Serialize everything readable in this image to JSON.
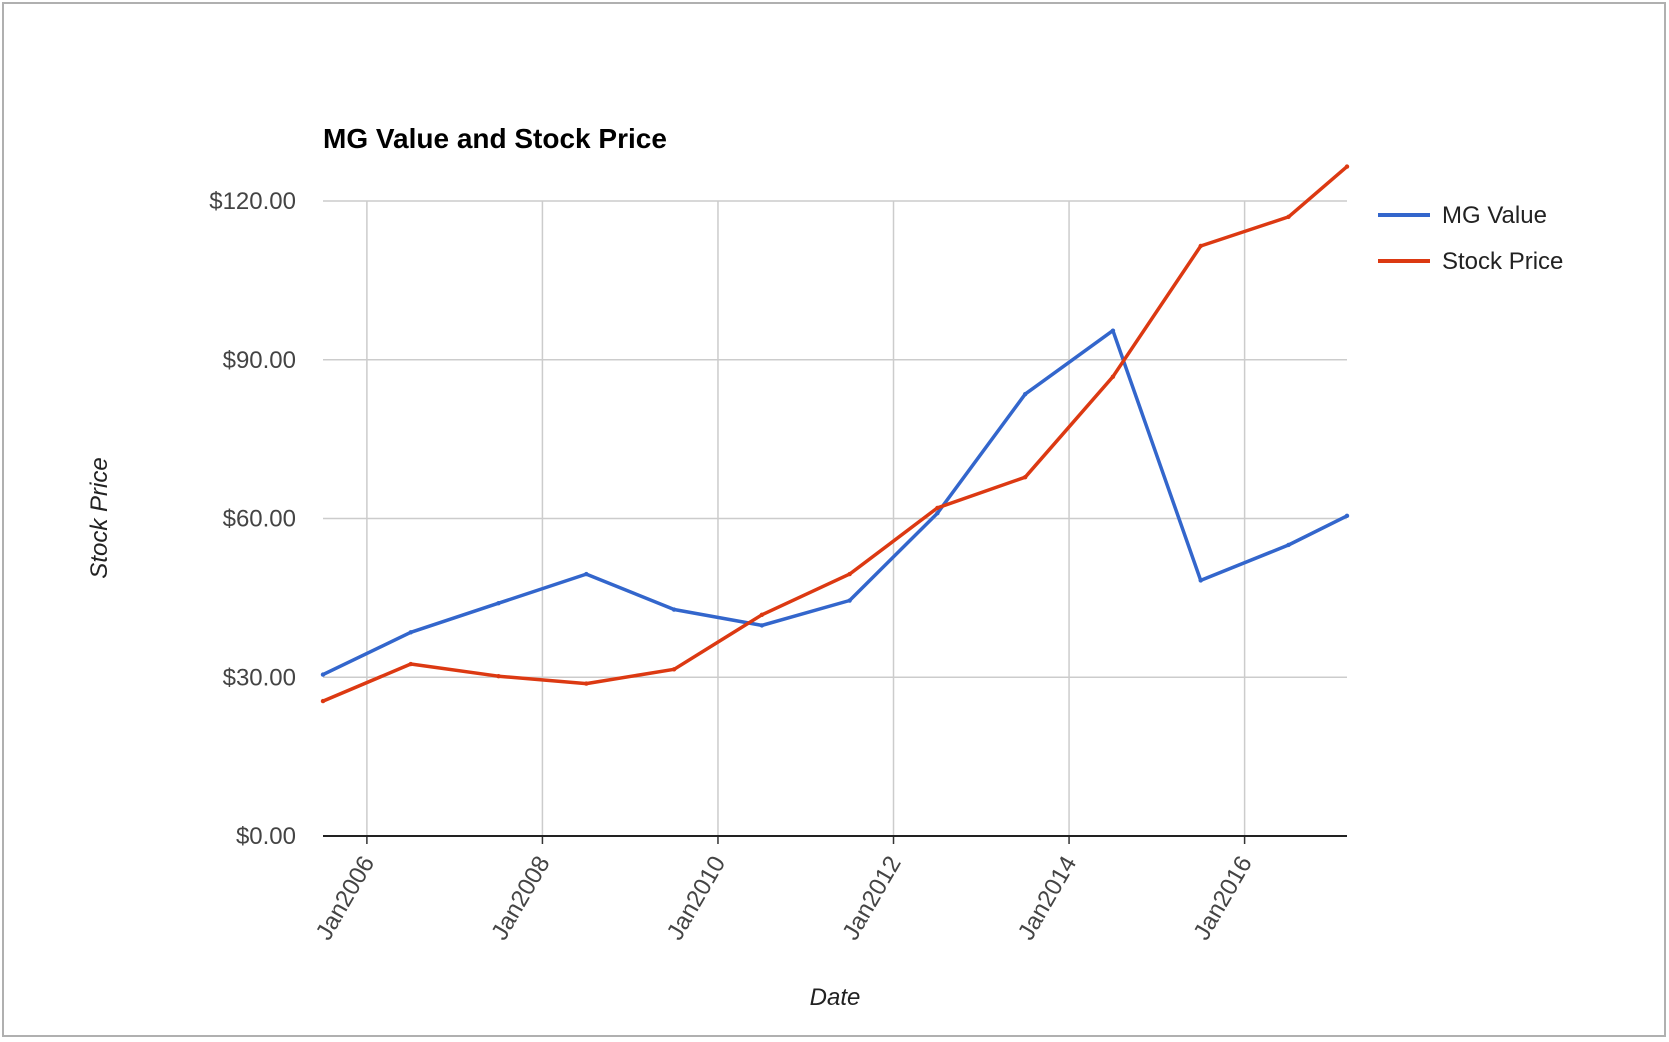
{
  "chart_data": {
    "type": "line",
    "title": "MG Value and Stock Price",
    "xlabel": "Date",
    "ylabel": "Stock Price",
    "x": [
      "2005-07",
      "2006-07",
      "2007-07",
      "2008-07",
      "2009-07",
      "2010-07",
      "2011-07",
      "2012-07",
      "2013-07",
      "2014-07",
      "2015-07",
      "2016-07",
      "2017-03"
    ],
    "x_ticks": [
      {
        "date": "2006-01",
        "label": "Jan2006"
      },
      {
        "date": "2008-01",
        "label": "Jan2008"
      },
      {
        "date": "2010-01",
        "label": "Jan2010"
      },
      {
        "date": "2012-01",
        "label": "Jan2012"
      },
      {
        "date": "2014-01",
        "label": "Jan2014"
      },
      {
        "date": "2016-01",
        "label": "Jan2016"
      }
    ],
    "y_ticks": [
      {
        "value": 0,
        "label": "$0.00"
      },
      {
        "value": 30,
        "label": "$30.00"
      },
      {
        "value": 60,
        "label": "$60.00"
      },
      {
        "value": 90,
        "label": "$90.00"
      },
      {
        "value": 120,
        "label": "$120.00"
      }
    ],
    "ylim": [
      0,
      120
    ],
    "xlim": [
      "2005-07",
      "2017-03"
    ],
    "grid": true,
    "legend_position": "right",
    "series": [
      {
        "name": "MG Value",
        "color": "#3366cc",
        "values": [
          30.5,
          38.5,
          44.0,
          49.5,
          42.8,
          39.8,
          44.5,
          61.0,
          83.5,
          95.5,
          48.3,
          55.0,
          60.5
        ]
      },
      {
        "name": "Stock Price",
        "color": "#dc3912",
        "values": [
          25.5,
          32.5,
          30.2,
          28.8,
          31.5,
          41.8,
          49.5,
          62.0,
          67.8,
          86.8,
          111.5,
          117.0,
          126.5
        ]
      }
    ]
  }
}
